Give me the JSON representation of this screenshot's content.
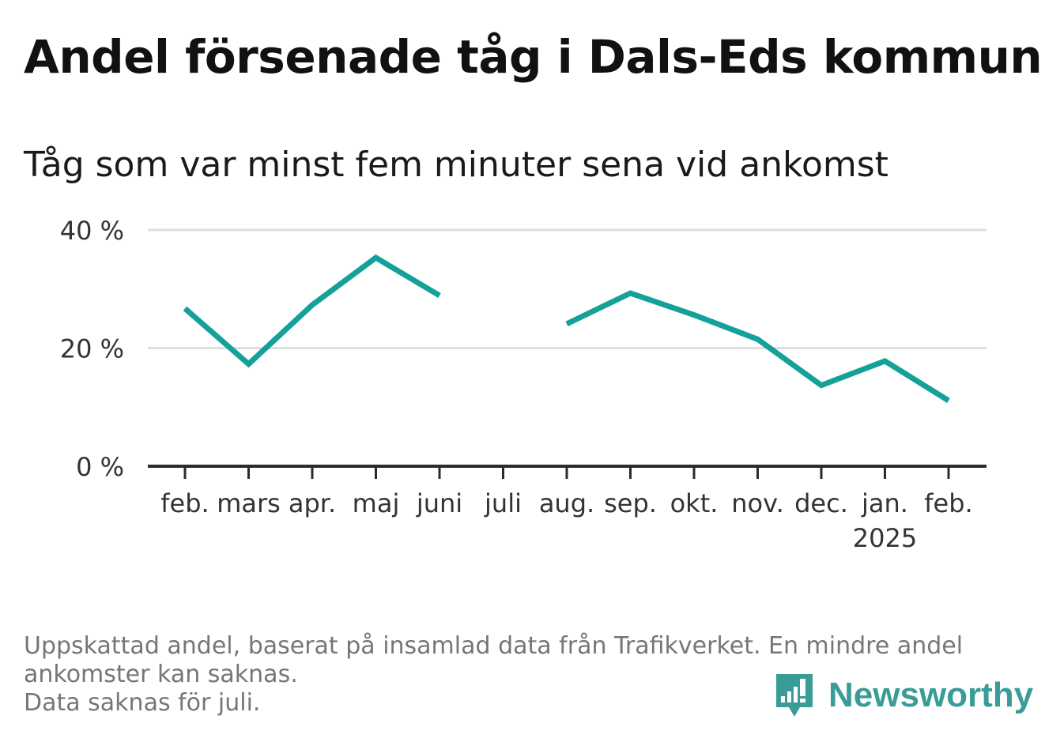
{
  "title": "Andel försenade tåg i Dals-Eds kommun",
  "subtitle": "Tåg som var minst fem minuter sena vid ankomst",
  "footnote": {
    "line1": "Uppskattad andel, baserat på insamlad data från Trafikverket. En mindre andel",
    "line2": "ankomster kan saknas.",
    "line3": "Data saknas för juli."
  },
  "brand": {
    "name": "Newsworthy",
    "icon": "newsworthy-logo-icon",
    "color": "#3a9c96"
  },
  "colors": {
    "line": "#13a19a",
    "grid": "#dedede",
    "axis": "#2b2b2b"
  },
  "chart_data": {
    "type": "line",
    "title": "Andel försenade tåg i Dals-Eds kommun",
    "subtitle": "Tåg som var minst fem minuter sena vid ankomst",
    "xlabel": "",
    "ylabel": "",
    "categories": [
      "feb.",
      "mars",
      "apr.",
      "maj",
      "juni",
      "juli",
      "aug.",
      "sep.",
      "okt.",
      "nov.",
      "dec.",
      "jan.",
      "feb."
    ],
    "year_label": {
      "category_index": 11,
      "text": "2025"
    },
    "y_ticks": [
      0,
      20,
      40
    ],
    "y_tick_labels": [
      "0 %",
      "20 %",
      "40 %"
    ],
    "ylim": [
      0,
      40
    ],
    "grid": true,
    "legend": "none",
    "series": [
      {
        "values": [
          26.7,
          17.3,
          27.3,
          35.3,
          28.9,
          null,
          24.1,
          29.3,
          25.6,
          21.5,
          13.7,
          17.8,
          11.1
        ]
      }
    ]
  }
}
